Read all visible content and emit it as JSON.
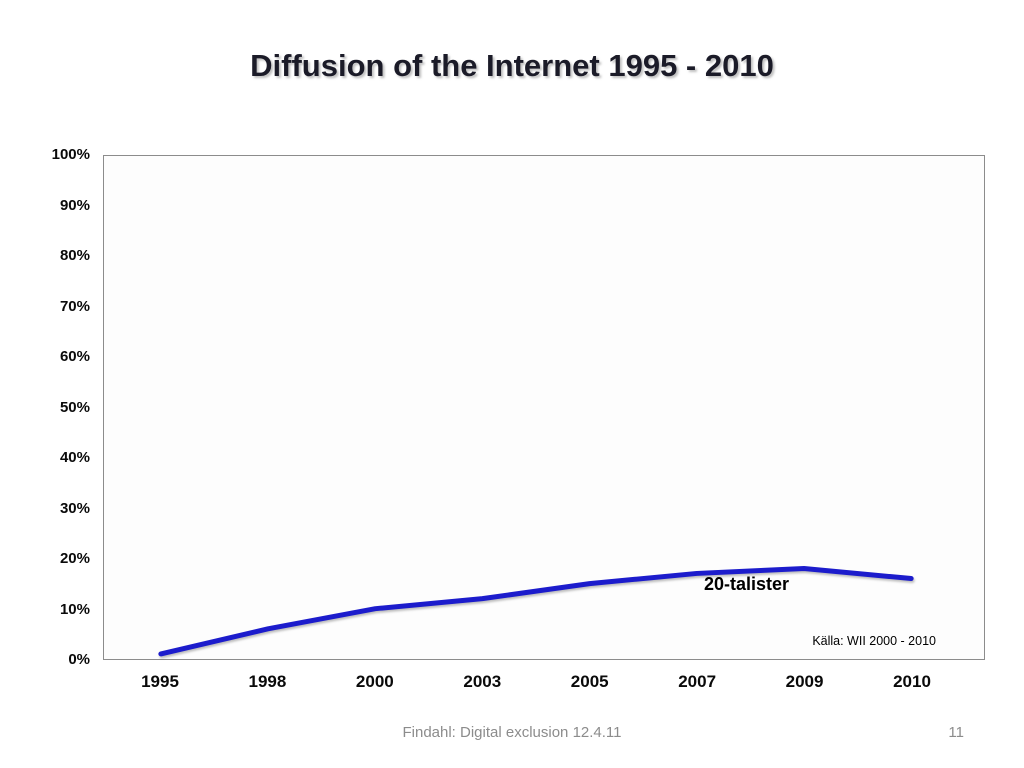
{
  "slide": {
    "title": "Diffusion of the Internet 1995 - 2010"
  },
  "footer": {
    "text": "Findahl: Digital exclusion 12.4.11",
    "page_number": "11"
  },
  "chart_data": {
    "type": "line",
    "title": "Diffusion of the Internet 1995 - 2010",
    "categories": [
      "1995",
      "1998",
      "2000",
      "2003",
      "2005",
      "2007",
      "2009",
      "2010"
    ],
    "series": [
      {
        "name": "20-talister",
        "values": [
          1,
          6,
          10,
          12,
          15,
          17,
          18,
          16
        ],
        "color": "#1c1ccc"
      }
    ],
    "xlabel": "",
    "ylabel": "",
    "ylim": [
      0,
      100
    ],
    "ytick_step": 10,
    "ytick_labels": [
      "0%",
      "10%",
      "20%",
      "30%",
      "40%",
      "50%",
      "60%",
      "70%",
      "80%",
      "90%",
      "100%"
    ],
    "grid": false,
    "legend_position": "none",
    "source": "Källa: WII 2000 - 2010",
    "plot_background": "#fdfdfd",
    "line_width": 5
  }
}
